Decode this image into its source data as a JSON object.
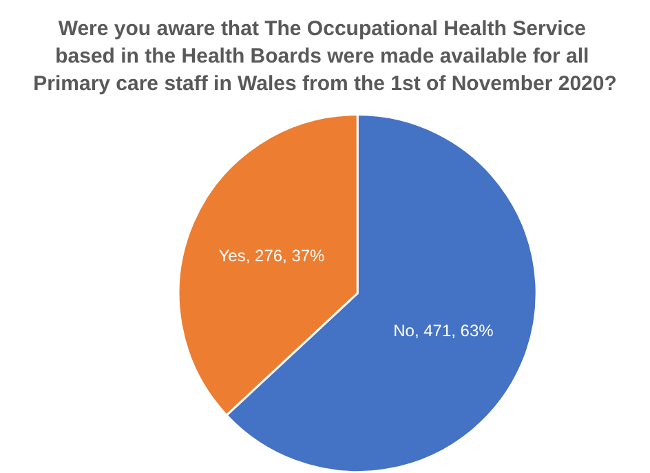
{
  "chart_data": {
    "type": "pie",
    "title": "Were you aware that The Occupational Health Service based in the Health Boards were made available for all Primary care staff in Wales from the 1st of November 2020?",
    "categories": [
      "No",
      "Yes"
    ],
    "values": [
      471,
      276
    ],
    "colors": [
      "#4472c4",
      "#ed7d31"
    ],
    "value_labels": [
      ", 471, 63%",
      ", 276, 37%"
    ],
    "legend": false
  }
}
